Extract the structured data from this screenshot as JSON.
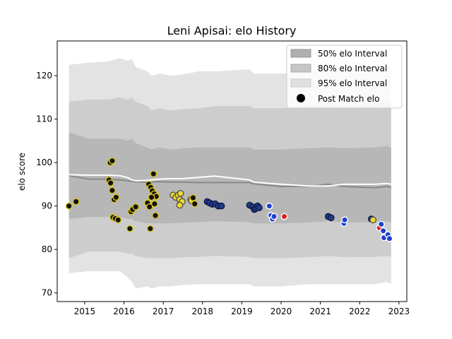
{
  "chart_data": {
    "type": "area",
    "title": "Leni Apisai: elo History",
    "xlabel": "",
    "ylabel": "elo score",
    "xlim": [
      2014.3,
      2023.2
    ],
    "ylim": [
      68,
      128
    ],
    "xticks": [
      2015,
      2016,
      2017,
      2018,
      2019,
      2020,
      2021,
      2022,
      2023
    ],
    "yticks": [
      70,
      80,
      90,
      100,
      110,
      120
    ],
    "grid": false,
    "legend": {
      "position": "top-right",
      "entries": [
        {
          "label": "50% elo Interval",
          "swatch": "band50"
        },
        {
          "label": "80% elo Interval",
          "swatch": "band80"
        },
        {
          "label": "95% elo Interval",
          "swatch": "band95"
        },
        {
          "label": "Post Match elo",
          "swatch": "point"
        }
      ]
    },
    "colors": {
      "band95": "#e3e3e3",
      "band80": "#cdcdcd",
      "band50": "#b7b7b7",
      "mean_line": "#888888",
      "white_line": "#ffffff",
      "point_edge_yellow": "#d4c21a",
      "point_fill_yellow": "#111111",
      "yellow_fill": "#f2dc2a",
      "navy": "#233a86",
      "blue": "#1f3fd0",
      "red": "#e01b1b"
    },
    "bands": {
      "x": [
        2014.6,
        2015.1,
        2015.6,
        2015.9,
        2016.1,
        2016.2,
        2016.3,
        2016.6,
        2016.7,
        2016.9,
        2017.2,
        2017.5,
        2017.9,
        2018.3,
        2019.2,
        2019.3,
        2020.0,
        2020.7,
        2021.2,
        2021.6,
        2022.4,
        2022.7,
        2022.8
      ],
      "p95_upper": [
        122.5,
        123.0,
        123.3,
        124.0,
        123.5,
        123.8,
        122.0,
        121.0,
        120.0,
        120.5,
        120.0,
        120.3,
        121.0,
        121.0,
        121.5,
        120.5,
        120.5,
        121.0,
        122.0,
        121.5,
        122.0,
        122.5,
        122.0
      ],
      "p80_upper": [
        114.0,
        114.5,
        114.5,
        115.0,
        114.5,
        115.0,
        114.0,
        113.0,
        112.0,
        112.5,
        112.0,
        112.3,
        112.5,
        113.0,
        113.0,
        112.5,
        112.5,
        113.0,
        113.5,
        113.0,
        113.5,
        114.0,
        113.5
      ],
      "p50_upper": [
        107.0,
        105.5,
        105.5,
        105.5,
        105.0,
        105.5,
        104.5,
        103.5,
        103.0,
        103.5,
        103.0,
        103.3,
        103.5,
        103.5,
        103.5,
        103.0,
        103.0,
        103.3,
        103.5,
        103.3,
        103.5,
        103.8,
        103.5
      ],
      "p50_lower": [
        87.0,
        87.5,
        87.5,
        87.5,
        87.0,
        87.0,
        86.5,
        86.0,
        86.0,
        86.0,
        86.0,
        86.2,
        86.3,
        86.5,
        86.3,
        86.0,
        86.0,
        86.2,
        86.5,
        86.2,
        86.3,
        86.5,
        86.3
      ],
      "p80_lower": [
        78.0,
        79.5,
        79.5,
        79.5,
        79.0,
        79.0,
        78.5,
        78.0,
        78.0,
        78.0,
        78.0,
        78.2,
        78.3,
        78.5,
        78.3,
        78.0,
        78.0,
        78.2,
        78.5,
        78.2,
        78.3,
        78.5,
        78.3
      ],
      "p95_lower": [
        74.5,
        75.0,
        75.0,
        75.0,
        73.5,
        72.5,
        71.0,
        71.5,
        71.0,
        71.5,
        71.5,
        71.8,
        72.0,
        72.0,
        72.0,
        71.5,
        71.5,
        72.0,
        72.0,
        72.0,
        72.0,
        72.5,
        72.0
      ],
      "mean": [
        97.0,
        96.2,
        96.2,
        96.0,
        95.8,
        95.7,
        95.6,
        95.5,
        95.5,
        95.6,
        95.5,
        95.5,
        95.4,
        95.4,
        95.4,
        95.1,
        94.5,
        94.5,
        95.0,
        94.5,
        94.2,
        94.5,
        94.3
      ],
      "white": [
        97.2,
        97.1,
        97.1,
        97.0,
        96.5,
        96.0,
        95.8,
        95.9,
        96.0,
        96.2,
        96.3,
        96.3,
        96.6,
        96.9,
        96.0,
        95.5,
        95.0,
        94.6,
        94.6,
        95.0,
        95.0,
        95.2,
        95.0
      ]
    },
    "points": [
      {
        "x": 2014.6,
        "y": 90.0,
        "g": "y"
      },
      {
        "x": 2014.78,
        "y": 91.0,
        "g": "y"
      },
      {
        "x": 2015.62,
        "y": 96.0,
        "g": "y"
      },
      {
        "x": 2015.65,
        "y": 100.0,
        "g": "y"
      },
      {
        "x": 2015.7,
        "y": 100.4,
        "g": "y"
      },
      {
        "x": 2015.66,
        "y": 95.3,
        "g": "y"
      },
      {
        "x": 2015.7,
        "y": 93.6,
        "g": "y"
      },
      {
        "x": 2015.75,
        "y": 91.5,
        "g": "y"
      },
      {
        "x": 2015.8,
        "y": 92.0,
        "g": "y"
      },
      {
        "x": 2015.72,
        "y": 87.4,
        "g": "y"
      },
      {
        "x": 2015.78,
        "y": 87.1,
        "g": "y"
      },
      {
        "x": 2015.85,
        "y": 86.8,
        "g": "y"
      },
      {
        "x": 2016.15,
        "y": 84.8,
        "g": "y"
      },
      {
        "x": 2016.18,
        "y": 88.7,
        "g": "y"
      },
      {
        "x": 2016.22,
        "y": 89.2,
        "g": "y"
      },
      {
        "x": 2016.3,
        "y": 89.8,
        "g": "y"
      },
      {
        "x": 2016.6,
        "y": 90.7,
        "g": "y"
      },
      {
        "x": 2016.63,
        "y": 95.0,
        "g": "y"
      },
      {
        "x": 2016.68,
        "y": 94.3,
        "g": "y"
      },
      {
        "x": 2016.72,
        "y": 93.5,
        "g": "y"
      },
      {
        "x": 2016.77,
        "y": 92.8,
        "g": "y"
      },
      {
        "x": 2016.82,
        "y": 92.2,
        "g": "y"
      },
      {
        "x": 2016.7,
        "y": 92.0,
        "g": "y"
      },
      {
        "x": 2016.75,
        "y": 97.4,
        "g": "y"
      },
      {
        "x": 2016.65,
        "y": 89.8,
        "g": "y"
      },
      {
        "x": 2016.78,
        "y": 90.5,
        "g": "y"
      },
      {
        "x": 2016.8,
        "y": 87.8,
        "g": "y"
      },
      {
        "x": 2016.67,
        "y": 84.8,
        "g": "y"
      },
      {
        "x": 2017.25,
        "y": 92.5,
        "g": "yf"
      },
      {
        "x": 2017.32,
        "y": 92.0,
        "g": "yf"
      },
      {
        "x": 2017.38,
        "y": 92.5,
        "g": "yf"
      },
      {
        "x": 2017.42,
        "y": 91.5,
        "g": "yf"
      },
      {
        "x": 2017.44,
        "y": 92.9,
        "g": "yf"
      },
      {
        "x": 2017.48,
        "y": 91.0,
        "g": "yf"
      },
      {
        "x": 2017.42,
        "y": 90.2,
        "g": "yf"
      },
      {
        "x": 2017.7,
        "y": 91.5,
        "g": "yf"
      },
      {
        "x": 2017.72,
        "y": 91.2,
        "g": "yf"
      },
      {
        "x": 2017.76,
        "y": 91.9,
        "g": "y"
      },
      {
        "x": 2017.8,
        "y": 90.5,
        "g": "y"
      },
      {
        "x": 2018.12,
        "y": 91.0,
        "g": "n"
      },
      {
        "x": 2018.18,
        "y": 90.7,
        "g": "n"
      },
      {
        "x": 2018.25,
        "y": 90.4,
        "g": "n"
      },
      {
        "x": 2018.32,
        "y": 90.5,
        "g": "n"
      },
      {
        "x": 2018.4,
        "y": 90.0,
        "g": "n"
      },
      {
        "x": 2018.48,
        "y": 90.0,
        "g": "n"
      },
      {
        "x": 2019.2,
        "y": 90.2,
        "g": "n"
      },
      {
        "x": 2019.28,
        "y": 89.8,
        "g": "n"
      },
      {
        "x": 2019.32,
        "y": 89.2,
        "g": "n"
      },
      {
        "x": 2019.36,
        "y": 89.5,
        "g": "n"
      },
      {
        "x": 2019.4,
        "y": 90.0,
        "g": "n"
      },
      {
        "x": 2019.44,
        "y": 89.6,
        "g": "n"
      },
      {
        "x": 2019.7,
        "y": 90.0,
        "g": "b"
      },
      {
        "x": 2019.74,
        "y": 87.8,
        "g": "b"
      },
      {
        "x": 2019.78,
        "y": 87.0,
        "g": "b"
      },
      {
        "x": 2019.82,
        "y": 87.6,
        "g": "b"
      },
      {
        "x": 2020.08,
        "y": 87.6,
        "g": "r"
      },
      {
        "x": 2021.2,
        "y": 87.6,
        "g": "n"
      },
      {
        "x": 2021.27,
        "y": 87.3,
        "g": "n"
      },
      {
        "x": 2021.6,
        "y": 86.0,
        "g": "b"
      },
      {
        "x": 2021.62,
        "y": 86.8,
        "g": "b"
      },
      {
        "x": 2022.3,
        "y": 87.0,
        "g": "n"
      },
      {
        "x": 2022.34,
        "y": 86.8,
        "g": "yf"
      },
      {
        "x": 2022.5,
        "y": 85.0,
        "g": "r"
      },
      {
        "x": 2022.55,
        "y": 85.8,
        "g": "b"
      },
      {
        "x": 2022.6,
        "y": 84.3,
        "g": "b"
      },
      {
        "x": 2022.62,
        "y": 82.7,
        "g": "b"
      },
      {
        "x": 2022.72,
        "y": 83.4,
        "g": "b"
      },
      {
        "x": 2022.78,
        "y": 82.4,
        "g": "b"
      },
      {
        "x": 2022.76,
        "y": 82.5,
        "g": "b"
      }
    ]
  }
}
